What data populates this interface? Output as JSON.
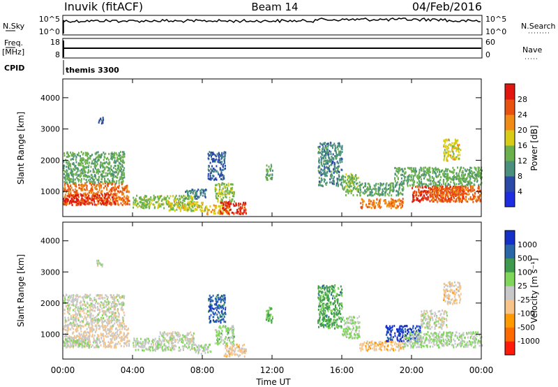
{
  "header": {
    "station": "Inuvik (fitACF)",
    "beam": "Beam 14",
    "date": "04/Feb/2016"
  },
  "strips": {
    "nsky": {
      "label": "N.Sky",
      "ticks_left": [
        "10^5",
        "10^0"
      ],
      "ticks_right": [
        "10^5",
        "10^0"
      ],
      "right_label": "N.Search"
    },
    "freq": {
      "label_top": "Freq.",
      "label_bottom": "[MHz]",
      "ticks_left": [
        "18",
        "8"
      ],
      "ticks_right": [
        "60",
        "0"
      ],
      "right_label": "Nave"
    },
    "cpid": {
      "label": "CPID",
      "text": "themis 3300"
    }
  },
  "colorbars": {
    "power": {
      "title": "Power [dB]",
      "colors": [
        "#1f2de0",
        "#2b4aa8",
        "#4b8f7d",
        "#6ab04c",
        "#d8cc16",
        "#f08b16",
        "#e8510f",
        "#e0160f"
      ],
      "tick_labels": [
        "4",
        "8",
        "12",
        "16",
        "20",
        "24",
        "28"
      ]
    },
    "velocity": {
      "title": "Velocity [m s⁻¹]",
      "colors": [
        "#ff1a0a",
        "#ff6a00",
        "#ff9a00",
        "#f7c48a",
        "#c8c8c8",
        "#7fd65a",
        "#3f9a4d",
        "#2a66a8",
        "#1430c8"
      ],
      "tick_labels": [
        "-1000",
        "-500",
        "-100",
        "-25",
        "25",
        "100",
        "500",
        "1000"
      ]
    }
  },
  "chart_data": [
    {
      "type": "heatmap",
      "name": "power",
      "xlabel": "Time UT",
      "ylabel": "Slant Range [km]",
      "x_ticks": [
        "00:00",
        "04:00",
        "08:00",
        "12:00",
        "16:00",
        "20:00",
        "00:00"
      ],
      "y_ticks": [
        1000,
        2000,
        3000,
        4000
      ],
      "xlim": [
        0,
        24
      ],
      "ylim": [
        200,
        4600
      ],
      "value_range": [
        0,
        32
      ],
      "regions": [
        {
          "t": [
            0.0,
            3.8
          ],
          "r": [
            600,
            1300
          ],
          "v": 24
        },
        {
          "t": [
            0.0,
            3.0
          ],
          "r": [
            600,
            950
          ],
          "v": 29
        },
        {
          "t": [
            0.0,
            3.5
          ],
          "r": [
            1300,
            2300
          ],
          "v": 13
        },
        {
          "t": [
            1.9,
            2.3
          ],
          "r": [
            3200,
            3400
          ],
          "v": 7
        },
        {
          "t": [
            4.0,
            7.5
          ],
          "r": [
            500,
            900
          ],
          "v": 15
        },
        {
          "t": [
            6.0,
            8.2
          ],
          "r": [
            400,
            700
          ],
          "v": 18
        },
        {
          "t": [
            7.0,
            8.2
          ],
          "r": [
            800,
            1100
          ],
          "v": 9
        },
        {
          "t": [
            8.2,
            9.5
          ],
          "r": [
            300,
            600
          ],
          "v": 20
        },
        {
          "t": [
            8.3,
            9.3
          ],
          "r": [
            1400,
            2300
          ],
          "v": 7
        },
        {
          "t": [
            8.7,
            9.8
          ],
          "r": [
            700,
            1300
          ],
          "v": 15
        },
        {
          "t": [
            9.0,
            10.5
          ],
          "r": [
            300,
            700
          ],
          "v": 29
        },
        {
          "t": [
            11.6,
            12.0
          ],
          "r": [
            1400,
            1900
          ],
          "v": 12
        },
        {
          "t": [
            14.6,
            16.0
          ],
          "r": [
            1200,
            2600
          ],
          "v": 10
        },
        {
          "t": [
            16.0,
            17.0
          ],
          "r": [
            900,
            1600
          ],
          "v": 14
        },
        {
          "t": [
            17.0,
            19.5
          ],
          "r": [
            500,
            800
          ],
          "v": 23
        },
        {
          "t": [
            17.0,
            19.5
          ],
          "r": [
            900,
            1300
          ],
          "v": 12
        },
        {
          "t": [
            20.0,
            23.0
          ],
          "r": [
            700,
            1200
          ],
          "v": 28
        },
        {
          "t": [
            19.0,
            24.0
          ],
          "r": [
            1200,
            1800
          ],
          "v": 13
        },
        {
          "t": [
            21.0,
            24.0
          ],
          "r": [
            700,
            1200
          ],
          "v": 25
        },
        {
          "t": [
            21.8,
            22.8
          ],
          "r": [
            2000,
            2700
          ],
          "v": 18
        }
      ]
    },
    {
      "type": "heatmap",
      "name": "velocity",
      "xlabel": "Time UT",
      "ylabel": "Slant Range [km]",
      "x_ticks": [
        "00:00",
        "04:00",
        "08:00",
        "12:00",
        "16:00",
        "20:00",
        "00:00"
      ],
      "y_ticks": [
        1000,
        2000,
        3000,
        4000
      ],
      "xlim": [
        0,
        24
      ],
      "ylim": [
        200,
        4600
      ],
      "value_range": [
        -1000,
        1000
      ],
      "regions": [
        {
          "t": [
            0.0,
            3.8
          ],
          "r": [
            600,
            1300
          ],
          "v": -120
        },
        {
          "t": [
            0.0,
            3.5
          ],
          "r": [
            1300,
            2300
          ],
          "v": 0
        },
        {
          "t": [
            0.0,
            2.0
          ],
          "r": [
            600,
            900
          ],
          "v": 120
        },
        {
          "t": [
            1.9,
            2.3
          ],
          "r": [
            3200,
            3400
          ],
          "v": 0
        },
        {
          "t": [
            4.0,
            7.5
          ],
          "r": [
            500,
            900
          ],
          "v": 60
        },
        {
          "t": [
            5.5,
            7.5
          ],
          "r": [
            800,
            1100
          ],
          "v": 0
        },
        {
          "t": [
            7.5,
            8.5
          ],
          "r": [
            400,
            700
          ],
          "v": 80
        },
        {
          "t": [
            8.3,
            9.3
          ],
          "r": [
            1400,
            2300
          ],
          "v": 700
        },
        {
          "t": [
            8.7,
            9.8
          ],
          "r": [
            700,
            1300
          ],
          "v": 200
        },
        {
          "t": [
            9.2,
            10.5
          ],
          "r": [
            300,
            700
          ],
          "v": -200
        },
        {
          "t": [
            11.6,
            12.0
          ],
          "r": [
            1400,
            1900
          ],
          "v": 300
        },
        {
          "t": [
            14.6,
            16.0
          ],
          "r": [
            1200,
            2600
          ],
          "v": 400
        },
        {
          "t": [
            16.0,
            17.0
          ],
          "r": [
            900,
            1600
          ],
          "v": 150
        },
        {
          "t": [
            17.0,
            19.5
          ],
          "r": [
            500,
            800
          ],
          "v": -250
        },
        {
          "t": [
            18.5,
            20.5
          ],
          "r": [
            800,
            1300
          ],
          "v": 900
        },
        {
          "t": [
            20.5,
            22.0
          ],
          "r": [
            1200,
            1800
          ],
          "v": 0
        },
        {
          "t": [
            19.5,
            24.0
          ],
          "r": [
            600,
            1100
          ],
          "v": 120
        },
        {
          "t": [
            21.8,
            22.8
          ],
          "r": [
            2000,
            2700
          ],
          "v": -200
        }
      ]
    }
  ]
}
